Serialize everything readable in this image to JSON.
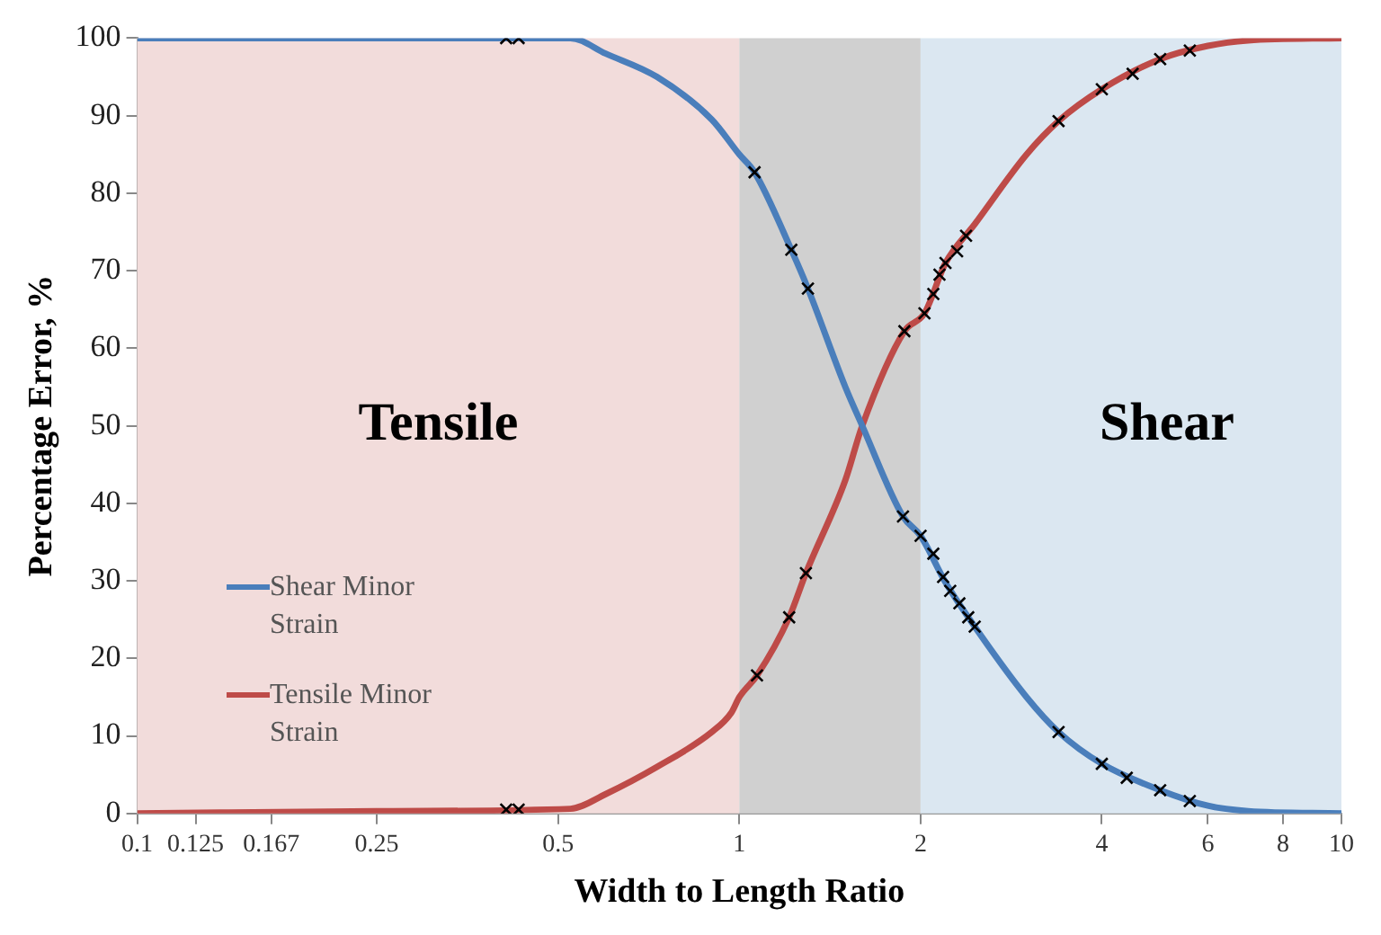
{
  "chart_data": {
    "type": "line",
    "xlabel": "Width to Length Ratio",
    "ylabel": "Percentage Error, %",
    "xlim": [
      0.1,
      10
    ],
    "xticks": [
      0.1,
      0.125,
      0.167,
      0.25,
      0.5,
      1,
      2,
      4,
      6,
      8,
      10
    ],
    "log": "x",
    "ylim": [
      0,
      100
    ],
    "yticks": [
      0,
      10,
      20,
      30,
      40,
      50,
      60,
      70,
      80,
      90,
      100
    ],
    "grid": false,
    "legend": "left",
    "marker": "none",
    "bands": [
      {
        "axis": "x",
        "from": 0.1,
        "to": 1,
        "label": "Tensile",
        "color": "#f2dcdb"
      },
      {
        "axis": "x",
        "from": 1,
        "to": 2,
        "color": "#d0d0d0"
      },
      {
        "axis": "x",
        "from": 2,
        "to": 10,
        "label": "Shear",
        "color": "#dbe7f1"
      }
    ],
    "series": [
      {
        "name": "Shear Minor Strain",
        "color": "#4a7ebb",
        "x": [
          0.1,
          0.524,
          0.6,
          0.73,
          0.9,
          1,
          1.06,
          1.22,
          1.3,
          1.5,
          1.6,
          1.87,
          2,
          2.2,
          2.46,
          3,
          3.39,
          4,
          5,
          6,
          7,
          10
        ],
        "values": [
          100,
          100,
          98,
          95,
          89.5,
          85,
          82.7,
          72.7,
          67.7,
          55,
          50,
          38.3,
          35.8,
          29.8,
          24.1,
          15,
          10.5,
          6.4,
          3,
          1,
          0.3,
          0
        ]
      },
      {
        "name": "Tensile Minor Strain",
        "color": "#be4b48",
        "x": [
          0.1,
          0.25,
          0.524,
          0.6,
          0.73,
          0.9,
          0.97,
          1,
          1.07,
          1.21,
          1.29,
          1.5,
          1.6,
          1.88,
          2.03,
          2.2,
          2.46,
          3,
          3.39,
          4,
          5,
          6,
          7,
          10
        ],
        "values": [
          0,
          0.3,
          0.6,
          2.5,
          6,
          10.5,
          13,
          15,
          17.8,
          25.3,
          31,
          43,
          50,
          62.2,
          64.5,
          71,
          76,
          85,
          89.3,
          93.4,
          97.3,
          99,
          99.7,
          100
        ]
      },
      {
        "type": "scatter",
        "color": "#000000",
        "marker": "cross",
        "x": [
          0.41,
          0.43,
          1.06,
          1.22,
          1.3,
          1.87,
          2,
          2.1,
          2.18,
          2.24,
          2.32,
          2.4,
          2.46,
          3.39,
          4,
          4.4,
          5,
          5.6
        ],
        "values": [
          100,
          100,
          82.7,
          72.7,
          67.7,
          38.3,
          35.8,
          33.5,
          30.5,
          28.7,
          27.1,
          25.3,
          24.1,
          10.5,
          6.4,
          4.6,
          3,
          1.6
        ]
      },
      {
        "type": "scatter",
        "color": "#000000",
        "marker": "cross",
        "x": [
          0.41,
          0.43,
          1.07,
          1.21,
          1.29,
          1.88,
          2.03,
          2.1,
          2.15,
          2.2,
          2.3,
          2.38,
          3.39,
          4,
          4.5,
          5,
          5.6
        ],
        "values": [
          0.5,
          0.5,
          17.8,
          25.3,
          31,
          62.2,
          64.5,
          67,
          69.5,
          71,
          72.5,
          74.5,
          89.3,
          93.4,
          95.4,
          97.3,
          98.4
        ]
      }
    ]
  }
}
